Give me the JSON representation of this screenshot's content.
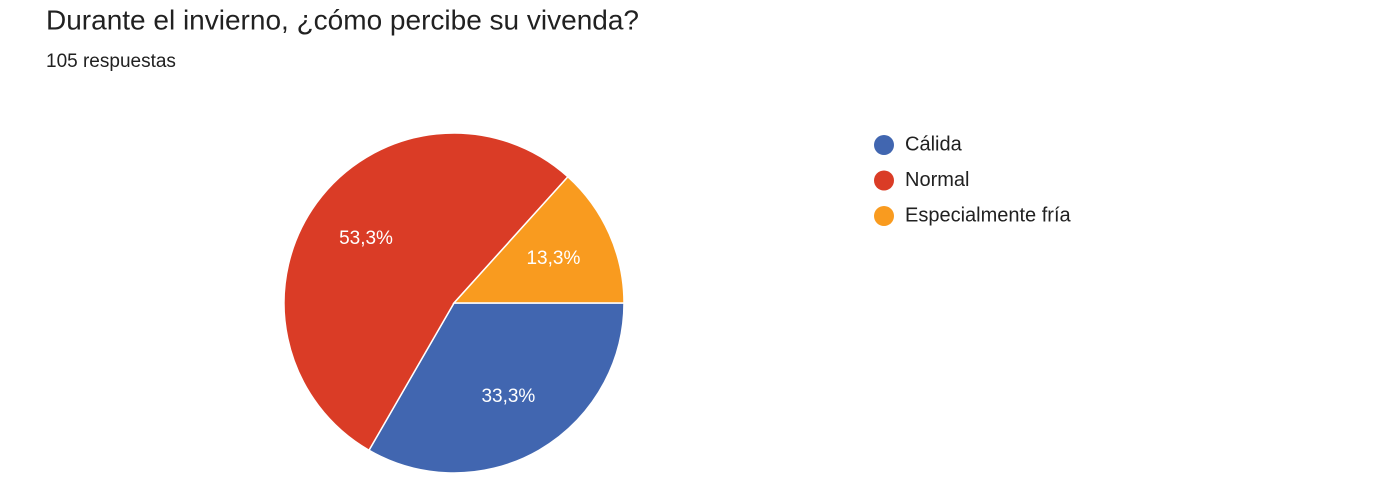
{
  "chart_data": {
    "type": "pie",
    "title": "Durante el invierno, ¿cómo percibe su vivenda?",
    "subtitle": "105 respuestas",
    "categories": [
      "Cálida",
      "Normal",
      "Especialmente fría"
    ],
    "values": [
      33.3,
      53.3,
      13.3
    ],
    "value_labels": [
      "33,3%",
      "53,3%",
      "13,3%"
    ],
    "colors": [
      "#4166b0",
      "#da3c26",
      "#f99b1f"
    ]
  }
}
